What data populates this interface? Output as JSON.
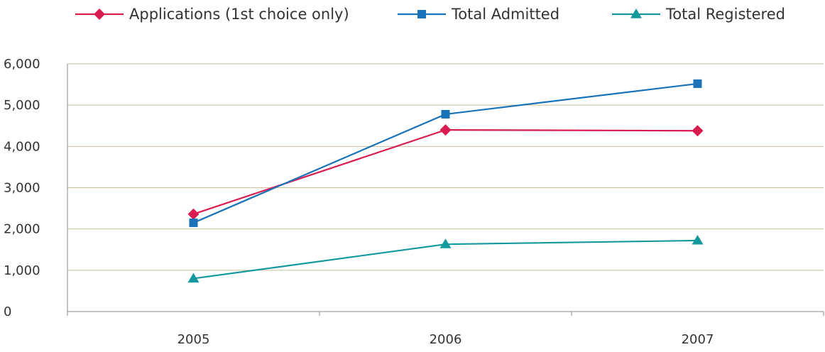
{
  "chart_data": {
    "type": "line",
    "categories": [
      "2005",
      "2006",
      "2007"
    ],
    "series": [
      {
        "name": "Applications (1st choice only)",
        "values": [
          2360,
          4400,
          4380
        ],
        "color": "#d81c50",
        "marker": "diamond"
      },
      {
        "name": "Total Admitted",
        "values": [
          2150,
          4780,
          5520
        ],
        "color": "#1a72b8",
        "marker": "square"
      },
      {
        "name": "Total Registered",
        "values": [
          800,
          1630,
          1720
        ],
        "color": "#13999d",
        "marker": "triangle"
      }
    ],
    "yticks": [
      "0",
      "1,000",
      "2,000",
      "3,000",
      "4,000",
      "5,000",
      "6,000"
    ],
    "ylim": [
      0,
      6000
    ],
    "grid": true,
    "legend_position": "top"
  }
}
